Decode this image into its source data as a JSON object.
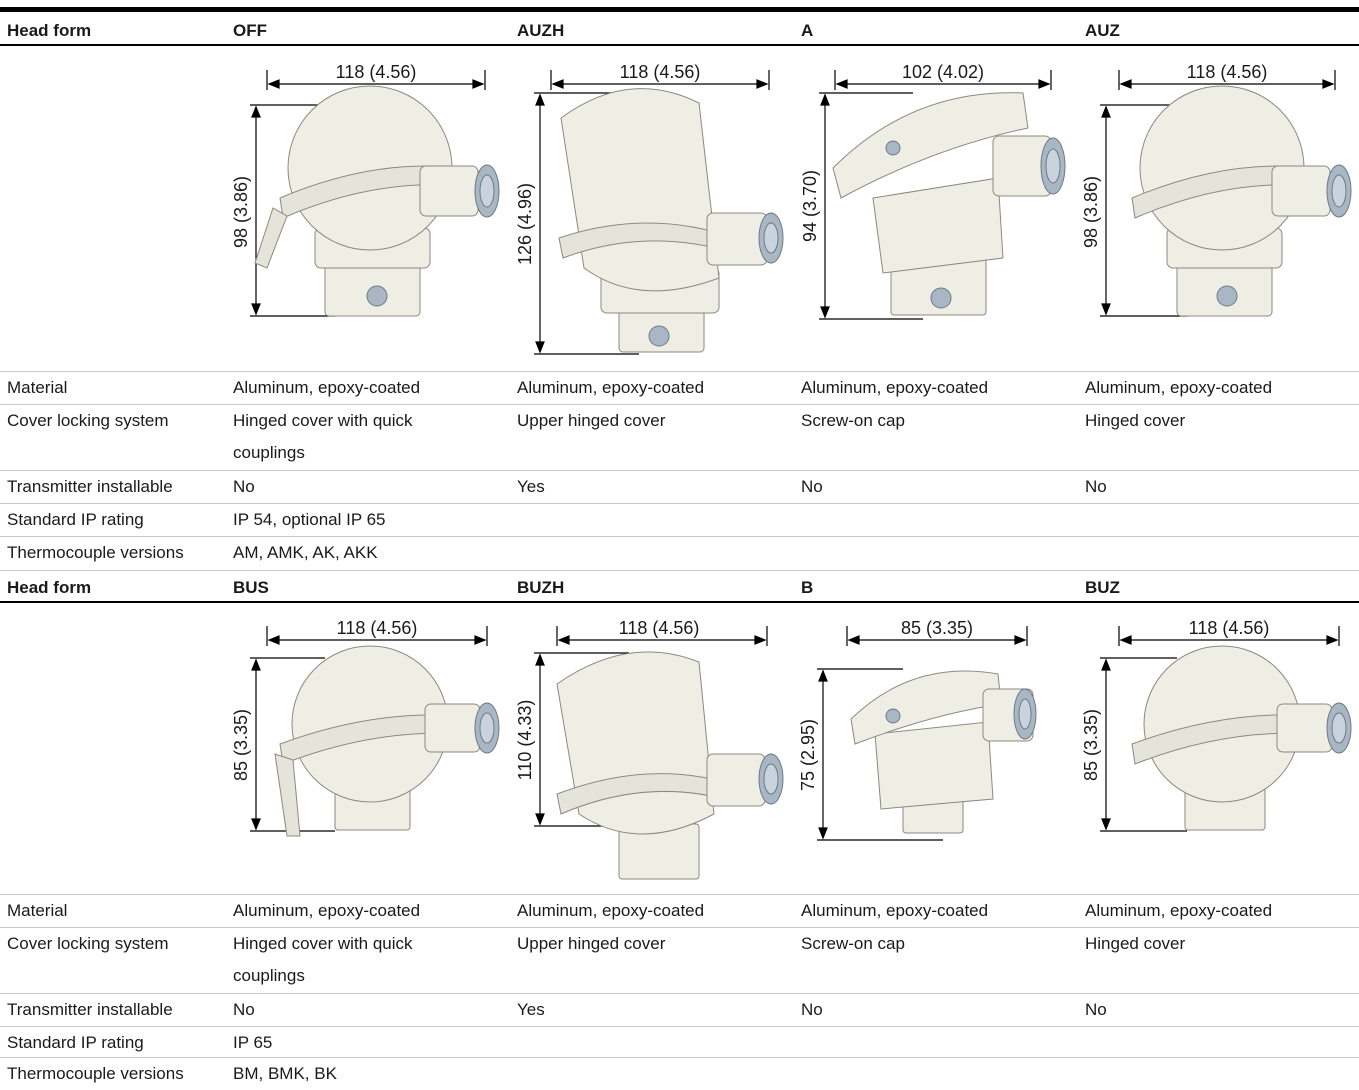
{
  "header_label": "Head form",
  "row_labels": {
    "material": "Material",
    "cover": "Cover locking system",
    "transmitter": "Transmitter installable",
    "ip": "Standard IP rating",
    "thermocouple": "Thermocouple versions"
  },
  "sections": [
    {
      "heads": [
        {
          "name": "OFF",
          "width_dim": "118 (4.56)",
          "height_dim": "98 (3.86)",
          "material": "Aluminum, epoxy-coated",
          "cover_line1": "Hinged cover with quick",
          "cover_line2": "couplings",
          "transmitter": "No"
        },
        {
          "name": "AUZH",
          "width_dim": "118 (4.56)",
          "height_dim": "126 (4.96)",
          "material": "Aluminum, epoxy-coated",
          "cover_line1": "Upper hinged cover",
          "cover_line2": "",
          "transmitter": "Yes"
        },
        {
          "name": "A",
          "width_dim": "102 (4.02)",
          "height_dim": "94 (3.70)",
          "material": "Aluminum, epoxy-coated",
          "cover_line1": "Screw-on cap",
          "cover_line2": "",
          "transmitter": "No"
        },
        {
          "name": "AUZ",
          "width_dim": "118 (4.56)",
          "height_dim": "98 (3.86)",
          "material": "Aluminum, epoxy-coated",
          "cover_line1": "Hinged cover",
          "cover_line2": "",
          "transmitter": "No"
        }
      ],
      "ip_rating": "IP 54, optional IP 65",
      "thermocouple": "AM, AMK, AK, AKK"
    },
    {
      "heads": [
        {
          "name": "BUS",
          "width_dim": "118 (4.56)",
          "height_dim": "85 (3.35)",
          "material": "Aluminum, epoxy-coated",
          "cover_line1": "Hinged cover with quick",
          "cover_line2": "couplings",
          "transmitter": "No"
        },
        {
          "name": "BUZH",
          "width_dim": "118 (4.56)",
          "height_dim": "110 (4.33)",
          "material": "Aluminum, epoxy-coated",
          "cover_line1": "Upper hinged cover",
          "cover_line2": "",
          "transmitter": "Yes"
        },
        {
          "name": "B",
          "width_dim": "85 (3.35)",
          "height_dim": "75 (2.95)",
          "material": "Aluminum, epoxy-coated",
          "cover_line1": "Screw-on cap",
          "cover_line2": "",
          "transmitter": "No"
        },
        {
          "name": "BUZ",
          "width_dim": "118 (4.56)",
          "height_dim": "85 (3.35)",
          "material": "Aluminum, epoxy-coated",
          "cover_line1": "Hinged cover",
          "cover_line2": "",
          "transmitter": "No"
        }
      ],
      "ip_rating": "IP 65",
      "thermocouple": "BM, BMK, BK"
    }
  ],
  "colors": {
    "housing": "#eeeee4",
    "fitting": "#a9b7c4",
    "line": "#000000",
    "divider": "#c8c8c8"
  }
}
